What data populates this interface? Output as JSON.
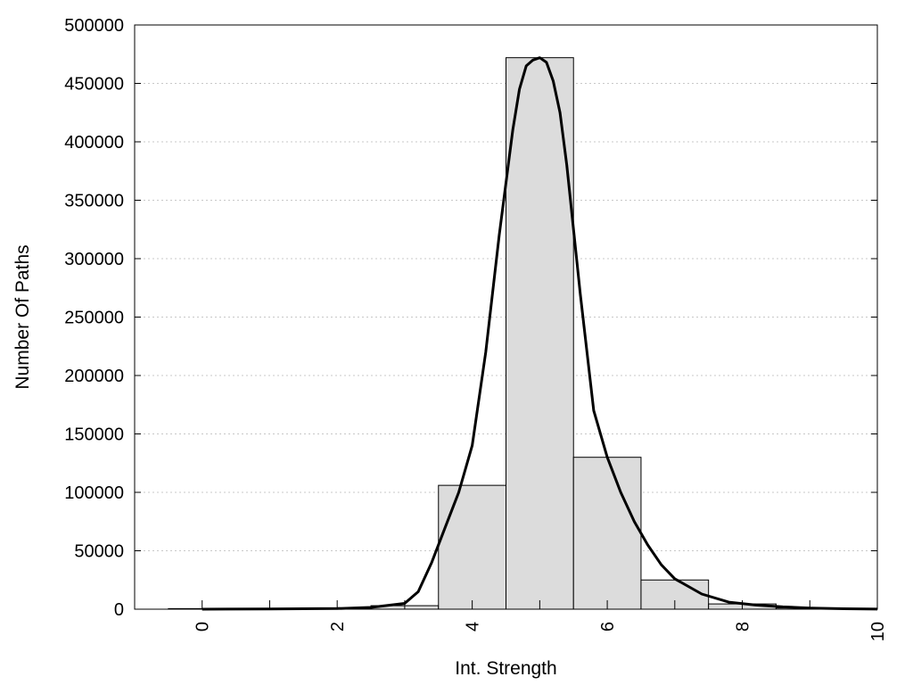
{
  "chart_data": {
    "type": "bar",
    "title": "",
    "xlabel": "Int. Strength",
    "ylabel": "Number Of Paths",
    "xlim": [
      -1,
      10
    ],
    "ylim": [
      0,
      500000
    ],
    "x_ticks": [
      0,
      2,
      4,
      6,
      8,
      10
    ],
    "x_tick_labels": [
      "0",
      "2",
      "4",
      "6",
      "8",
      "10"
    ],
    "y_ticks": [
      0,
      50000,
      100000,
      150000,
      200000,
      250000,
      300000,
      350000,
      400000,
      450000,
      500000
    ],
    "y_tick_labels": [
      "0",
      "50000",
      "100000",
      "150000",
      "200000",
      "250000",
      "300000",
      "350000",
      "400000",
      "450000",
      "500000"
    ],
    "grid": "horizontal-dotted",
    "bars": [
      {
        "x": 0,
        "value": 500
      },
      {
        "x": 1,
        "value": 500
      },
      {
        "x": 2,
        "value": 700
      },
      {
        "x": 3,
        "value": 3000
      },
      {
        "x": 4,
        "value": 106000
      },
      {
        "x": 5,
        "value": 472000
      },
      {
        "x": 6,
        "value": 130000
      },
      {
        "x": 7,
        "value": 25000
      },
      {
        "x": 8,
        "value": 4500
      },
      {
        "x": 9,
        "value": 1000
      }
    ],
    "bar_width": 1,
    "bar_color": "#dcdcdc",
    "fit_curve": {
      "x": [
        0,
        1,
        2,
        2.5,
        3,
        3.2,
        3.4,
        3.6,
        3.8,
        4,
        4.2,
        4.4,
        4.6,
        4.7,
        4.8,
        4.9,
        5,
        5.1,
        5.2,
        5.3,
        5.4,
        5.6,
        5.8,
        6,
        6.2,
        6.4,
        6.6,
        6.8,
        7,
        7.4,
        7.8,
        8.2,
        8.6,
        9,
        9.5,
        10
      ],
      "y": [
        0,
        200,
        500,
        1500,
        5000,
        15000,
        40000,
        70000,
        100000,
        140000,
        220000,
        320000,
        410000,
        445000,
        465000,
        470000,
        472000,
        468000,
        452000,
        425000,
        380000,
        270000,
        170000,
        130000,
        100000,
        75000,
        55000,
        38000,
        26000,
        13000,
        6000,
        3500,
        2000,
        1000,
        400,
        100
      ],
      "color": "#000000"
    }
  }
}
